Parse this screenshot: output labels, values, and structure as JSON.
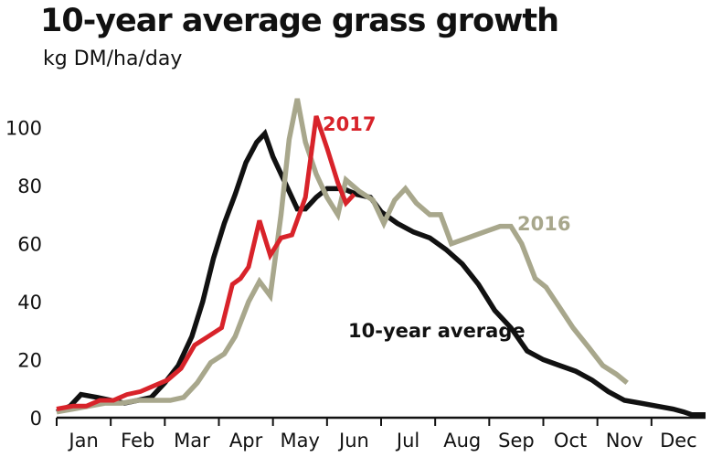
{
  "chart_data": {
    "type": "line",
    "title": "10-year average grass growth",
    "subtitle": "kg DM/ha/day",
    "xlabel": "",
    "ylabel": "",
    "categories": [
      "Jan",
      "Feb",
      "Mar",
      "Apr",
      "May",
      "Jun",
      "Jul",
      "Aug",
      "Sep",
      "Oct",
      "Nov",
      "Dec"
    ],
    "ylim": [
      0,
      110
    ],
    "yticks": [
      0,
      20,
      40,
      60,
      80,
      100
    ],
    "grid": false,
    "legend": "inline labels",
    "series": [
      {
        "name": "10-year average",
        "color": "#111111",
        "points": [
          [
            0.0,
            2
          ],
          [
            0.25,
            4
          ],
          [
            0.45,
            8
          ],
          [
            0.75,
            7
          ],
          [
            1.0,
            6
          ],
          [
            1.25,
            5
          ],
          [
            1.5,
            6
          ],
          [
            1.75,
            7
          ],
          [
            2.0,
            12
          ],
          [
            2.25,
            18
          ],
          [
            2.5,
            28
          ],
          [
            2.7,
            40
          ],
          [
            2.9,
            55
          ],
          [
            3.1,
            67
          ],
          [
            3.3,
            77
          ],
          [
            3.5,
            88
          ],
          [
            3.7,
            95
          ],
          [
            3.85,
            98
          ],
          [
            4.0,
            90
          ],
          [
            4.2,
            82
          ],
          [
            4.45,
            72
          ],
          [
            4.6,
            72
          ],
          [
            4.8,
            76
          ],
          [
            5.0,
            79
          ],
          [
            5.3,
            79
          ],
          [
            5.55,
            77
          ],
          [
            5.8,
            76
          ],
          [
            6.0,
            71
          ],
          [
            6.3,
            67
          ],
          [
            6.6,
            64
          ],
          [
            6.9,
            62
          ],
          [
            7.2,
            58
          ],
          [
            7.5,
            53
          ],
          [
            7.8,
            46
          ],
          [
            8.1,
            37
          ],
          [
            8.4,
            31
          ],
          [
            8.7,
            23
          ],
          [
            9.0,
            20
          ],
          [
            9.3,
            18
          ],
          [
            9.6,
            16
          ],
          [
            9.9,
            13
          ],
          [
            10.2,
            9
          ],
          [
            10.5,
            6
          ],
          [
            10.8,
            5
          ],
          [
            11.1,
            4
          ],
          [
            11.4,
            3
          ],
          [
            11.6,
            2
          ],
          [
            11.75,
            1
          ],
          [
            12.0,
            1
          ]
        ]
      },
      {
        "name": "2016",
        "color": "#a8a78c",
        "points": [
          [
            0.0,
            2
          ],
          [
            0.3,
            3
          ],
          [
            0.6,
            4
          ],
          [
            0.9,
            5
          ],
          [
            1.2,
            5
          ],
          [
            1.5,
            6
          ],
          [
            1.8,
            6
          ],
          [
            2.1,
            6
          ],
          [
            2.35,
            7
          ],
          [
            2.6,
            12
          ],
          [
            2.85,
            19
          ],
          [
            3.1,
            22
          ],
          [
            3.3,
            28
          ],
          [
            3.55,
            40
          ],
          [
            3.75,
            47
          ],
          [
            3.95,
            42
          ],
          [
            4.15,
            70
          ],
          [
            4.3,
            96
          ],
          [
            4.45,
            110
          ],
          [
            4.6,
            95
          ],
          [
            4.8,
            84
          ],
          [
            5.0,
            76
          ],
          [
            5.2,
            70
          ],
          [
            5.35,
            82
          ],
          [
            5.6,
            78
          ],
          [
            5.85,
            75
          ],
          [
            6.05,
            67
          ],
          [
            6.25,
            75
          ],
          [
            6.45,
            79
          ],
          [
            6.65,
            74
          ],
          [
            6.9,
            70
          ],
          [
            7.1,
            70
          ],
          [
            7.3,
            60
          ],
          [
            7.6,
            62
          ],
          [
            7.9,
            64
          ],
          [
            8.2,
            66
          ],
          [
            8.4,
            66
          ],
          [
            8.6,
            60
          ],
          [
            8.85,
            48
          ],
          [
            9.05,
            45
          ],
          [
            9.3,
            38
          ],
          [
            9.55,
            31
          ],
          [
            9.85,
            24
          ],
          [
            10.1,
            18
          ],
          [
            10.35,
            15
          ],
          [
            10.55,
            12
          ]
        ]
      },
      {
        "name": "2017",
        "color": "#d8232a",
        "points": [
          [
            0.0,
            3
          ],
          [
            0.3,
            4
          ],
          [
            0.55,
            4
          ],
          [
            0.8,
            6
          ],
          [
            1.05,
            6
          ],
          [
            1.3,
            8
          ],
          [
            1.55,
            9
          ],
          [
            1.8,
            11
          ],
          [
            2.05,
            13
          ],
          [
            2.3,
            17
          ],
          [
            2.55,
            25
          ],
          [
            2.8,
            28
          ],
          [
            3.05,
            31
          ],
          [
            3.25,
            46
          ],
          [
            3.4,
            48
          ],
          [
            3.55,
            52
          ],
          [
            3.75,
            68
          ],
          [
            3.95,
            56
          ],
          [
            4.15,
            62
          ],
          [
            4.35,
            63
          ],
          [
            4.6,
            76
          ],
          [
            4.8,
            104
          ],
          [
            5.0,
            93
          ],
          [
            5.2,
            81
          ],
          [
            5.35,
            74
          ],
          [
            5.5,
            77
          ]
        ]
      }
    ],
    "annotations": [
      {
        "text": "2017",
        "color": "#d8232a"
      },
      {
        "text": "2016",
        "color": "#a8a78c"
      },
      {
        "text": "10-year average",
        "color": "#111111"
      }
    ]
  }
}
